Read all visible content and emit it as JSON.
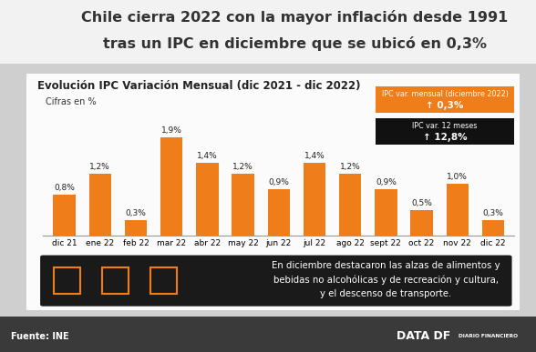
{
  "title": [
    "Chile cierra 2022 con la mayor inflación desde 1991",
    "tras un IPC en diciembre que se ubicó en 0,3%"
  ],
  "chart_data": {
    "type": "bar",
    "title": "Evolución IPC Variación Mensual (dic 2021 - dic 2022)",
    "subtitle": "Cifras en %",
    "categories": [
      "dic 21",
      "ene 22",
      "feb 22",
      "mar 22",
      "abr 22",
      "may 22",
      "jun 22",
      "jul 22",
      "ago 22",
      "sept 22",
      "oct 22",
      "nov 22",
      "dic 22"
    ],
    "values": [
      0.8,
      1.2,
      0.3,
      1.9,
      1.4,
      1.2,
      0.9,
      1.4,
      1.2,
      0.9,
      0.5,
      1.0,
      0.3
    ],
    "value_labels": [
      "0,8%",
      "1,2%",
      "0,3%",
      "1,9%",
      "1,4%",
      "1,2%",
      "0,9%",
      "1,4%",
      "1,2%",
      "0,9%",
      "0,5%",
      "1,0%",
      "0,3%"
    ],
    "data_labels": true,
    "color": "#ef7d1a",
    "ylim": [
      0,
      2.3
    ],
    "tick_labels": "x"
  },
  "callouts": [
    {
      "label": "IPC var. mensual (diciembre 2022)",
      "value": "↑ 0,3%",
      "color": "#ef7d1a"
    },
    {
      "label": "IPC var. 12 meses",
      "value": "↑ 12,8%",
      "color": "#111111"
    }
  ],
  "note": [
    "En diciembre destacaron las alzas de alimentos y",
    "bebidas no alcohólicas y de recreación y cultura,",
    "y el descenso de transporte."
  ],
  "source": "Fuente: INE",
  "brand": [
    "DATA DF",
    "DIARIO FINANCIERO"
  ]
}
